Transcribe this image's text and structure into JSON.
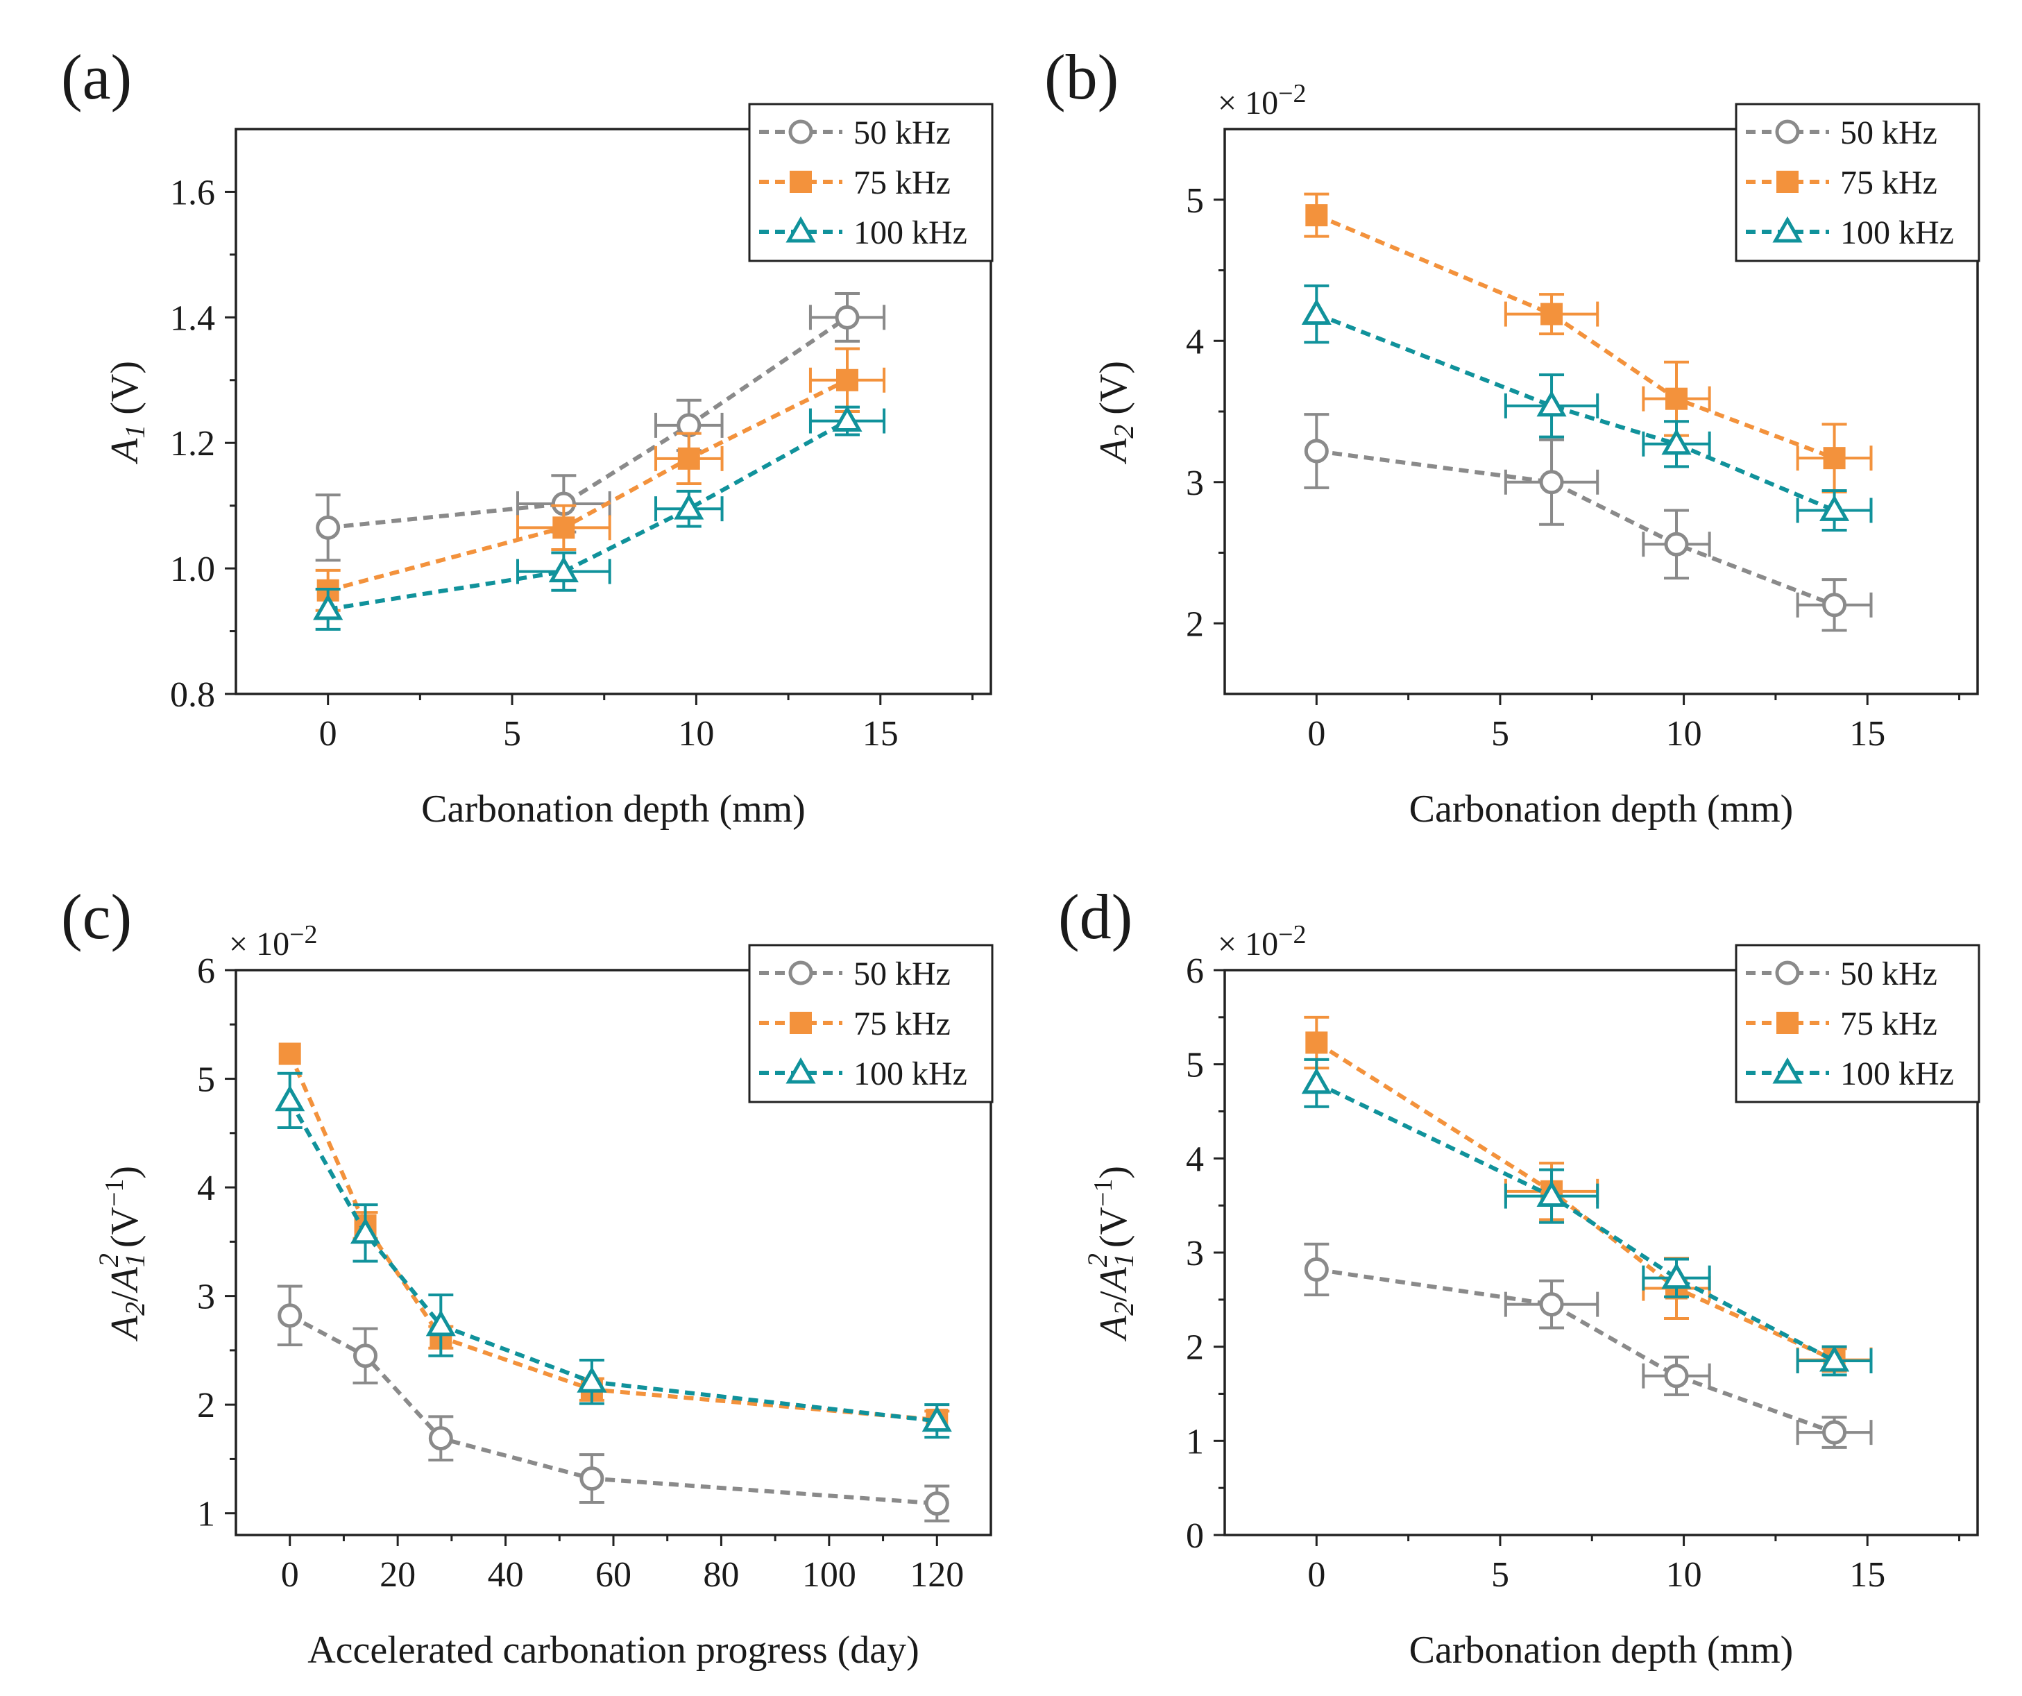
{
  "colors": {
    "50 kHz": "#8a8a8a",
    "75 kHz": "#f3923c",
    "100 kHz": "#10929b"
  },
  "chart_data": [
    {
      "type": "line",
      "panel": "(a)",
      "xlabel": "Carbonation depth (mm)",
      "ylabel": "A1 (V)",
      "ylabel_parts": {
        "main": "A",
        "sub": "1",
        "unit": " (V)"
      },
      "multiplier": null,
      "xlim": [
        -2.5,
        18
      ],
      "ylim": [
        0.8,
        1.7
      ],
      "xticks": [
        0,
        5,
        10,
        15
      ],
      "xtick_labels": [
        "0",
        "5",
        "10",
        "15"
      ],
      "yticks": [
        0.8,
        1.0,
        1.2,
        1.4,
        1.6
      ],
      "ytick_labels": [
        "0.8",
        "1.0",
        "1.2",
        "1.4",
        "1.6"
      ],
      "legend": {
        "position": "top-right",
        "entries": [
          "50 kHz",
          "75 kHz",
          "100 kHz"
        ]
      },
      "series": [
        {
          "name": "50 kHz",
          "marker": "circle",
          "x": [
            0,
            6.4,
            9.8,
            14.1
          ],
          "y": [
            1.065,
            1.103,
            1.228,
            1.4
          ],
          "xerr": [
            0,
            1.25,
            0.9,
            1.0
          ],
          "yerr": [
            0.052,
            0.045,
            0.04,
            0.038
          ]
        },
        {
          "name": "75 kHz",
          "marker": "square",
          "x": [
            0,
            6.4,
            9.8,
            14.1
          ],
          "y": [
            0.965,
            1.065,
            1.175,
            1.3
          ],
          "xerr": [
            0,
            1.25,
            0.9,
            1.0
          ],
          "yerr": [
            0.032,
            0.035,
            0.04,
            0.05
          ]
        },
        {
          "name": "100 kHz",
          "marker": "triangle",
          "x": [
            0,
            6.4,
            9.8,
            14.1
          ],
          "y": [
            0.935,
            0.995,
            1.095,
            1.235
          ],
          "xerr": [
            0,
            1.25,
            0.9,
            1.0
          ],
          "yerr": [
            0.032,
            0.03,
            0.028,
            0.022
          ]
        }
      ]
    },
    {
      "type": "line",
      "panel": "(b)",
      "xlabel": "Carbonation depth (mm)",
      "ylabel": "A2 (V)",
      "ylabel_parts": {
        "main": "A",
        "sub": "2",
        "unit": " (V)"
      },
      "multiplier": {
        "base": "× 10",
        "exp": "−2"
      },
      "xlim": [
        -2.5,
        18
      ],
      "ylim": [
        1.5,
        5.5
      ],
      "xticks": [
        0,
        5,
        10,
        15
      ],
      "xtick_labels": [
        "0",
        "5",
        "10",
        "15"
      ],
      "yticks": [
        2,
        3,
        4,
        5
      ],
      "ytick_labels": [
        "2",
        "3",
        "4",
        "5"
      ],
      "legend": {
        "position": "top-right",
        "entries": [
          "50 kHz",
          "75 kHz",
          "100 kHz"
        ]
      },
      "series": [
        {
          "name": "50 kHz",
          "marker": "circle",
          "x": [
            0,
            6.4,
            9.8,
            14.1
          ],
          "y": [
            3.22,
            3.0,
            2.56,
            2.13
          ],
          "xerr": [
            0,
            1.25,
            0.9,
            1.0
          ],
          "yerr": [
            0.26,
            0.3,
            0.24,
            0.18
          ]
        },
        {
          "name": "75 kHz",
          "marker": "square",
          "x": [
            0,
            6.4,
            9.8,
            14.1
          ],
          "y": [
            4.89,
            4.19,
            3.59,
            3.17
          ],
          "xerr": [
            0,
            1.25,
            0.9,
            1.0
          ],
          "yerr": [
            0.15,
            0.14,
            0.26,
            0.24
          ]
        },
        {
          "name": "100 kHz",
          "marker": "triangle",
          "x": [
            0,
            6.4,
            9.8,
            14.1
          ],
          "y": [
            4.19,
            3.54,
            3.27,
            2.8
          ],
          "xerr": [
            0,
            1.25,
            0.9,
            1.0
          ],
          "yerr": [
            0.2,
            0.22,
            0.16,
            0.14
          ]
        }
      ]
    },
    {
      "type": "line",
      "panel": "(c)",
      "xlabel": "Accelerated carbonation progress (day)",
      "ylabel": "A2/A1^2 (V^-1)",
      "ylabel_parts": {
        "A": "A",
        "sub2": "2",
        "slash": "/",
        "sub1": "1",
        "sup2": "2",
        "unit": "(V",
        "unitsup": "−1",
        "close": ")"
      },
      "multiplier": {
        "base": "× 10",
        "exp": "−2"
      },
      "xlim": [
        -10,
        130
      ],
      "ylim": [
        0.8,
        6.0
      ],
      "xticks": [
        0,
        20,
        40,
        60,
        80,
        100,
        120
      ],
      "xtick_labels": [
        "0",
        "20",
        "40",
        "60",
        "80",
        "100",
        "120"
      ],
      "yticks": [
        1,
        2,
        3,
        4,
        5,
        6
      ],
      "ytick_labels": [
        "1",
        "2",
        "3",
        "4",
        "5",
        "6"
      ],
      "legend": {
        "position": "top-right",
        "entries": [
          "50 kHz",
          "75 kHz",
          "100 kHz"
        ]
      },
      "series": [
        {
          "name": "50 kHz",
          "marker": "circle",
          "x": [
            0,
            14,
            28,
            56,
            120
          ],
          "y": [
            2.82,
            2.45,
            1.69,
            1.32,
            1.09
          ],
          "xerr": [
            0,
            0,
            0,
            0,
            0
          ],
          "yerr": [
            0.27,
            0.25,
            0.2,
            0.22,
            0.16
          ]
        },
        {
          "name": "75 kHz",
          "marker": "square",
          "x": [
            0,
            14,
            28,
            56,
            120
          ],
          "y": [
            5.23,
            3.65,
            2.62,
            2.14,
            1.86
          ],
          "xerr": [
            0,
            0,
            0,
            0,
            0
          ],
          "yerr": [
            0,
            0.12,
            0.1,
            0.1,
            0.08
          ]
        },
        {
          "name": "100 kHz",
          "marker": "triangle",
          "x": [
            0,
            14,
            28,
            56,
            120
          ],
          "y": [
            4.8,
            3.58,
            2.73,
            2.21,
            1.85
          ],
          "xerr": [
            0,
            0,
            0,
            0,
            0
          ],
          "yerr": [
            0.25,
            0.26,
            0.28,
            0.2,
            0.15
          ]
        }
      ]
    },
    {
      "type": "line",
      "panel": "(d)",
      "xlabel": "Carbonation depth (mm)",
      "ylabel": "A2/A1^2 (V^-1)",
      "ylabel_parts": {
        "A": "A",
        "sub2": "2",
        "slash": "/",
        "sub1": "1",
        "sup2": "2",
        "unit": "(V",
        "unitsup": "−1",
        "close": ")"
      },
      "multiplier": {
        "base": "× 10",
        "exp": "−2"
      },
      "xlim": [
        -2.5,
        18
      ],
      "ylim": [
        0,
        6
      ],
      "xticks": [
        0,
        5,
        10,
        15
      ],
      "xtick_labels": [
        "0",
        "5",
        "10",
        "15"
      ],
      "yticks": [
        0,
        1,
        2,
        3,
        4,
        5,
        6
      ],
      "ytick_labels": [
        "0",
        "1",
        "2",
        "3",
        "4",
        "5",
        "6"
      ],
      "legend": {
        "position": "top-right",
        "entries": [
          "50 kHz",
          "75 kHz",
          "100 kHz"
        ]
      },
      "series": [
        {
          "name": "50 kHz",
          "marker": "circle",
          "x": [
            0,
            6.4,
            9.8,
            14.1
          ],
          "y": [
            2.82,
            2.45,
            1.69,
            1.09
          ],
          "xerr": [
            0,
            1.25,
            0.9,
            1.0
          ],
          "yerr": [
            0.27,
            0.25,
            0.2,
            0.16
          ]
        },
        {
          "name": "75 kHz",
          "marker": "square",
          "x": [
            0,
            6.4,
            9.8,
            14.1
          ],
          "y": [
            5.23,
            3.65,
            2.62,
            1.86
          ],
          "xerr": [
            0,
            1.25,
            0.9,
            1.0
          ],
          "yerr": [
            0.27,
            0.3,
            0.32,
            0.12
          ]
        },
        {
          "name": "100 kHz",
          "marker": "triangle",
          "x": [
            0,
            6.4,
            9.8,
            14.1
          ],
          "y": [
            4.8,
            3.6,
            2.73,
            1.85
          ],
          "xerr": [
            0,
            1.25,
            0.9,
            1.0
          ],
          "yerr": [
            0.25,
            0.28,
            0.2,
            0.15
          ]
        }
      ]
    }
  ]
}
